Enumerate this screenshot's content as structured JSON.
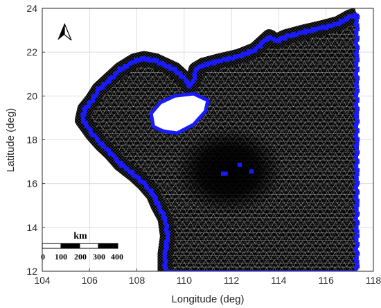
{
  "chart_data": {
    "type": "map",
    "subject": "triangular mesh with boundary nodes",
    "xlabel": "Longitude (deg)",
    "ylabel": "Latitude (deg)",
    "xlim": [
      104,
      118
    ],
    "ylim": [
      12,
      24
    ],
    "x_ticks": [
      "104",
      "106",
      "108",
      "110",
      "112",
      "114",
      "116",
      "118"
    ],
    "y_ticks": [
      "12",
      "14",
      "16",
      "18",
      "20",
      "22",
      "24"
    ],
    "grid": true,
    "colors": {
      "mesh": "#000000",
      "boundary_nodes": "#1a1aff",
      "grid": "#d9d9d9",
      "background": "#ffffff"
    },
    "scale_bar": {
      "unit": "km",
      "labels": [
        "0",
        "100",
        "200",
        "300",
        "400"
      ]
    },
    "north_arrow": "north-arrow-icon",
    "coastline": [
      [
        109.2,
        12.0
      ],
      [
        109.2,
        12.8
      ],
      [
        109.3,
        13.6
      ],
      [
        109.2,
        14.4
      ],
      [
        108.9,
        15.0
      ],
      [
        108.7,
        15.5
      ],
      [
        108.3,
        16.0
      ],
      [
        107.9,
        16.4
      ],
      [
        107.3,
        16.9
      ],
      [
        106.9,
        17.4
      ],
      [
        106.5,
        17.8
      ],
      [
        106.1,
        18.3
      ],
      [
        105.7,
        18.9
      ],
      [
        105.8,
        19.4
      ],
      [
        106.1,
        19.8
      ],
      [
        106.4,
        20.3
      ],
      [
        106.8,
        20.7
      ],
      [
        107.3,
        21.2
      ],
      [
        107.9,
        21.6
      ],
      [
        108.3,
        21.7
      ],
      [
        108.8,
        21.6
      ],
      [
        109.2,
        21.4
      ],
      [
        109.6,
        21.2
      ],
      [
        110.1,
        20.7
      ],
      [
        110.2,
        20.4
      ],
      [
        110.4,
        20.7
      ],
      [
        110.5,
        21.2
      ],
      [
        110.8,
        21.4
      ],
      [
        111.5,
        21.6
      ],
      [
        112.3,
        21.8
      ],
      [
        113.0,
        22.1
      ],
      [
        113.4,
        22.5
      ],
      [
        113.6,
        22.7
      ],
      [
        113.9,
        22.5
      ],
      [
        114.3,
        22.7
      ],
      [
        115.0,
        22.9
      ],
      [
        115.8,
        23.1
      ],
      [
        116.5,
        23.3
      ],
      [
        117.0,
        23.6
      ],
      [
        117.3,
        23.7
      ],
      [
        117.3,
        12.0
      ]
    ],
    "islands": [
      [
        [
          108.7,
          18.6
        ],
        [
          108.6,
          19.2
        ],
        [
          109.0,
          19.7
        ],
        [
          109.6,
          20.0
        ],
        [
          110.4,
          20.1
        ],
        [
          111.0,
          19.8
        ],
        [
          110.9,
          19.3
        ],
        [
          110.4,
          18.7
        ],
        [
          109.7,
          18.3
        ],
        [
          109.1,
          18.4
        ]
      ],
      [
        [
          112.3,
          16.9
        ],
        [
          112.4,
          16.9
        ],
        [
          112.4,
          16.8
        ],
        [
          112.3,
          16.8
        ]
      ],
      [
        [
          111.6,
          16.5
        ],
        [
          111.8,
          16.5
        ],
        [
          111.8,
          16.4
        ],
        [
          111.6,
          16.4
        ]
      ],
      [
        [
          112.8,
          16.6
        ],
        [
          112.9,
          16.6
        ],
        [
          112.9,
          16.5
        ],
        [
          112.8,
          16.5
        ]
      ]
    ],
    "dense_center": [
      111.9,
      16.6
    ]
  }
}
